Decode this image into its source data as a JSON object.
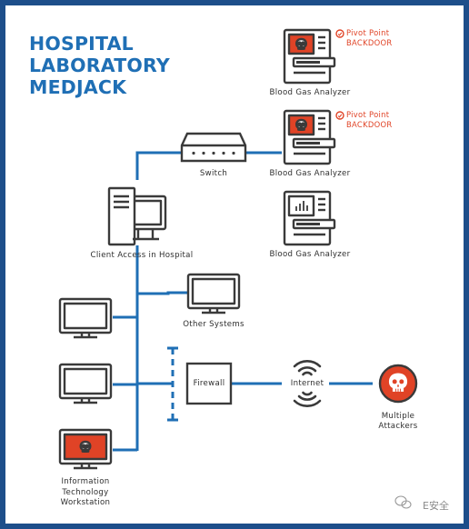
{
  "title": {
    "line1": "HOSPITAL",
    "line2": "LABORATORY",
    "line3": "MEDJACK"
  },
  "devices": {
    "analyzer1": "Blood Gas Analyzer",
    "analyzer2": "Blood Gas Analyzer",
    "analyzer3": "Blood Gas Analyzer",
    "switch": "Switch",
    "client": "Client Access in Hospital",
    "other": "Other Systems",
    "firewall": "Firewall",
    "internet": "Internet",
    "attackers_line1": "Multiple",
    "attackers_line2": "Attackers",
    "it_line1": "Information",
    "it_line2": "Technology",
    "it_line3": "Workstation"
  },
  "pivot": {
    "a1_line1": "Pivot Point",
    "a1_line2": "BACKDOOR",
    "a2_line1": "Pivot Point",
    "a2_line2": "BACKDOOR"
  },
  "watermark": "E安全",
  "colors": {
    "blue": "#1f6fb5",
    "frame": "#1d4e8a",
    "red": "#e04326",
    "outline": "#3a3a3a"
  },
  "icons": [
    "skull-icon",
    "blood-gas-analyzer-icon",
    "switch-icon",
    "desktop-computer-icon",
    "monitor-icon",
    "wifi-signal-icon",
    "wechat-icon"
  ]
}
